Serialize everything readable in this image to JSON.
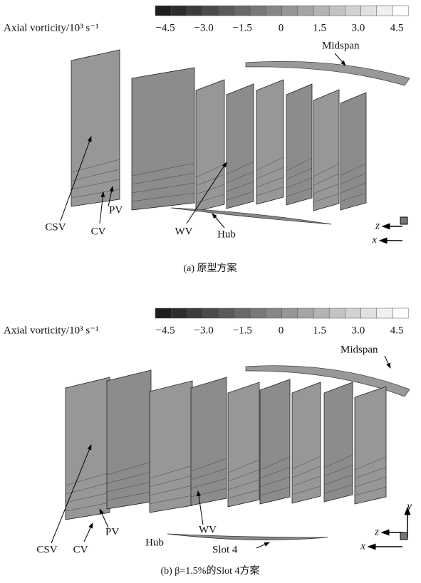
{
  "panels": [
    {
      "colorbar": {
        "label": "Axial vorticity/10³ s⁻¹",
        "ticks": [
          "−4.5",
          "−3.0",
          "−1.5",
          "0",
          "1.5",
          "3.0",
          "4.5"
        ]
      },
      "annotations": {
        "midspan": "Midspan",
        "csv": "CSV",
        "cv": "CV",
        "pv": "PV",
        "wv": "WV",
        "hub": "Hub"
      },
      "axes": [
        "z",
        "x"
      ],
      "caption": "(a) 原型方案"
    },
    {
      "colorbar": {
        "label": "Axial vorticity/10³ s⁻¹",
        "ticks": [
          "−4.5",
          "−3.0",
          "−1.5",
          "0",
          "1.5",
          "3.0",
          "4.5"
        ]
      },
      "annotations": {
        "midspan": "Midspan",
        "csv": "CSV",
        "cv": "CV",
        "pv": "PV",
        "wv": "WV",
        "hub": "Hub",
        "slot": "Slot 4"
      },
      "axes": [
        "y",
        "z",
        "x"
      ],
      "caption": "(b) β=1.5%的Slot 4方案"
    }
  ]
}
